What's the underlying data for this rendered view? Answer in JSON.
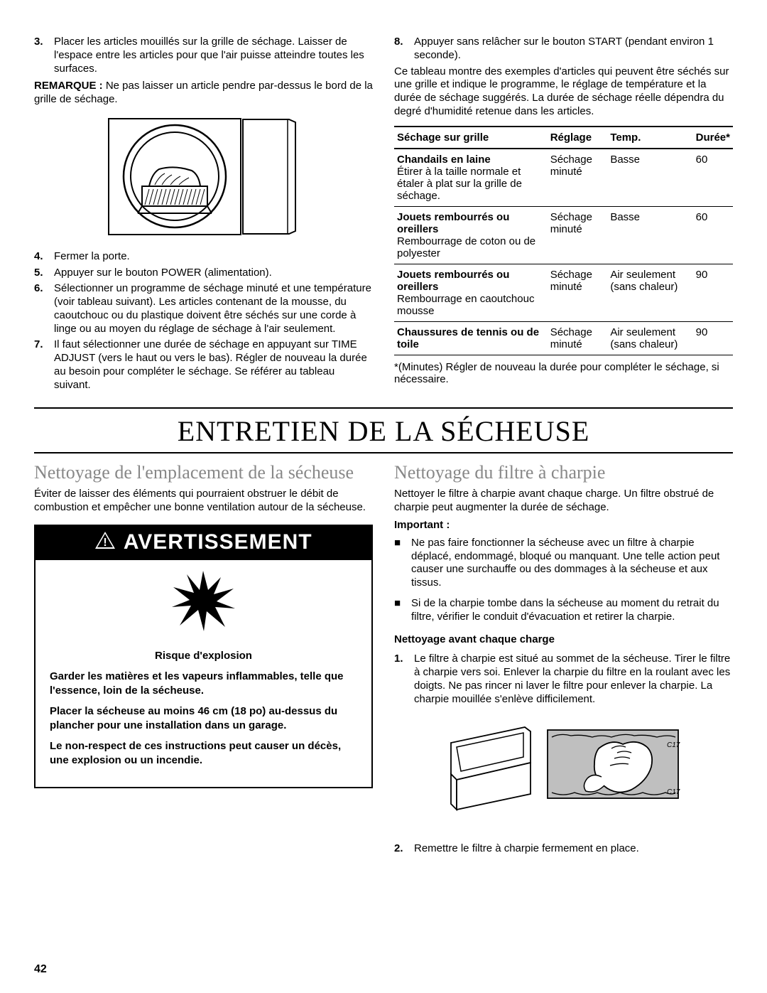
{
  "page_number": "42",
  "top": {
    "left": {
      "step3": {
        "num": "3.",
        "text": "Placer les articles mouillés sur la grille de séchage. Laisser de l'espace entre les articles pour que l'air puisse atteindre toutes les surfaces."
      },
      "note_label": "REMARQUE :",
      "note_text": " Ne pas laisser un article pendre par-dessus le bord de la grille de séchage.",
      "step4": {
        "num": "4.",
        "text": "Fermer la porte."
      },
      "step5": {
        "num": "5.",
        "text": "Appuyer sur le bouton POWER (alimentation)."
      },
      "step6": {
        "num": "6.",
        "text": "Sélectionner un programme de séchage minuté et une température (voir tableau suivant). Les articles contenant de la mousse, du caoutchouc ou du plastique doivent être séchés sur une corde à linge ou au moyen du réglage de séchage à l'air seulement."
      },
      "step7": {
        "num": "7.",
        "text": "Il faut sélectionner une durée de séchage en appuyant sur TIME ADJUST (vers le haut ou vers le bas). Régler de nouveau la durée au besoin pour compléter le séchage. Se référer au tableau suivant."
      }
    },
    "right": {
      "step8": {
        "num": "8.",
        "text": "Appuyer sans relâcher sur le bouton START (pendant environ 1 seconde)."
      },
      "intro": "Ce tableau montre des exemples d'articles qui peuvent être séchés sur une grille et indique le programme, le réglage de température et la durée de séchage suggérés. La durée de séchage réelle dépendra du degré d'humidité retenue dans les articles.",
      "table": {
        "headers": [
          "Séchage sur grille",
          "Réglage",
          "Temp.",
          "Durée*"
        ],
        "rows": [
          {
            "c1_bold": "Chandails en laine",
            "c1_rest": "Étirer à la taille normale et étaler à plat sur la grille de séchage.",
            "c2": "Séchage minuté",
            "c3": "Basse",
            "c4": "60"
          },
          {
            "c1_bold": "Jouets rembourrés ou oreillers",
            "c1_rest": "Rembourrage de coton ou de polyester",
            "c2": "Séchage minuté",
            "c3": "Basse",
            "c4": "60"
          },
          {
            "c1_bold": "Jouets rembourrés ou oreillers",
            "c1_rest": "Rembourrage en caoutchouc mousse",
            "c2": "Séchage minuté",
            "c3": "Air seulement (sans chaleur)",
            "c4": "90"
          },
          {
            "c1_bold": "Chaussures de tennis ou de toile",
            "c1_rest": "",
            "c2": "Séchage minuté",
            "c3": "Air seulement (sans chaleur)",
            "c4": "90"
          }
        ]
      },
      "footnote": "*(Minutes) Régler de nouveau la durée pour compléter le séchage, si nécessaire."
    }
  },
  "title": "ENTRETIEN DE LA SÉCHEUSE",
  "bottom": {
    "left": {
      "sub": "Nettoyage de l'emplacement de la sécheuse",
      "intro": "Éviter de laisser des éléments qui pourraient obstruer le débit de combustion et empêcher une bonne ventilation autour de la sécheuse.",
      "warn_title": "AVERTISSEMENT",
      "warn_p_center": "Risque d'explosion",
      "warn_p1": "Garder les matières et les vapeurs inflammables, telle que l'essence, loin de la sécheuse.",
      "warn_p2": "Placer la sécheuse au moins 46 cm (18 po) au-dessus du plancher pour une installation dans un garage.",
      "warn_p3": "Le non-respect de ces instructions peut causer un décès, une explosion ou un incendie."
    },
    "right": {
      "sub": "Nettoyage du filtre à charpie",
      "intro": "Nettoyer le filtre à charpie avant chaque charge. Un filtre obstrué de charpie peut augmenter la durée de séchage.",
      "important_label": "Important :",
      "bullet1": "Ne pas faire fonctionner la sécheuse avec un filtre à charpie déplacé, endommagé, bloqué ou manquant. Une telle action peut causer une surchauffe ou des dommages à la sécheuse et aux tissus.",
      "bullet2": "Si de la charpie tombe dans la sécheuse au moment du retrait du filtre, vérifier le conduit d'évacuation et retirer la charpie.",
      "subhead": "Nettoyage avant chaque charge",
      "step1": {
        "num": "1.",
        "text": "Le filtre à charpie est situé au sommet de la sécheuse. Tirer le filtre à charpie vers soi. Enlever la charpie du filtre en la roulant avec les doigts. Ne pas rincer ni laver le filtre pour enlever la charpie. La charpie mouillée s'enlève difficilement."
      },
      "step2": {
        "num": "2.",
        "text": "Remettre le filtre à charpie fermement en place."
      }
    }
  }
}
